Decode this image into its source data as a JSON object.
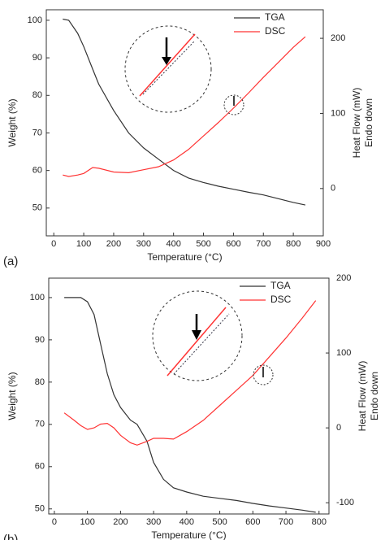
{
  "chart_data": [
    {
      "type": "line",
      "panel_label": "(a)",
      "xlabel": "Temperature (°C)",
      "ylabel": "Weight (%)",
      "y2label": [
        "Heat Flow (mW)",
        "Endo down"
      ],
      "x": [
        30,
        50,
        80,
        100,
        130,
        150,
        200,
        250,
        300,
        350,
        400,
        450,
        500,
        550,
        600,
        650,
        700,
        750,
        800,
        840
      ],
      "series": [
        {
          "name": "TGA",
          "color": "#333333",
          "values": [
            100.3,
            100,
            96.5,
            93,
            87,
            83,
            76,
            70,
            66,
            63,
            60,
            58,
            56.8,
            55.8,
            55,
            54.2,
            53.5,
            52.5,
            51.5,
            50.8
          ]
        },
        {
          "name": "DSC",
          "color": "#ff3333",
          "axis": "y2",
          "values": [
            18,
            16,
            18,
            20,
            28,
            27,
            22,
            21,
            25,
            29,
            38,
            52,
            70,
            88,
            107,
            127,
            148,
            168,
            188,
            202
          ]
        }
      ],
      "xlim": [
        -25,
        900
      ],
      "xticks": [
        0,
        100,
        200,
        300,
        400,
        500,
        600,
        700,
        800,
        900
      ],
      "ylim": [
        42.6,
        102.8
      ],
      "yticks": [
        50,
        60,
        70,
        80,
        90,
        100
      ],
      "y2lim": [
        -63,
        238
      ],
      "y2ticks": [
        0,
        100,
        200
      ],
      "legend": "top-right"
    },
    {
      "type": "line",
      "panel_label": "(b)",
      "xlabel": "Temperature (°C)",
      "ylabel": "Weight (%)",
      "y2label": [
        "Heat Flow (mW)",
        "Endo down"
      ],
      "x": [
        30,
        60,
        80,
        100,
        120,
        140,
        160,
        180,
        200,
        230,
        250,
        280,
        300,
        330,
        360,
        400,
        450,
        500,
        550,
        600,
        650,
        700,
        750,
        790
      ],
      "series": [
        {
          "name": "TGA",
          "color": "#333333",
          "values": [
            100,
            100,
            100,
            99,
            96,
            89,
            82,
            77,
            74,
            71,
            70,
            66,
            61,
            57,
            55,
            54,
            53,
            52.5,
            52,
            51.3,
            50.7,
            50.2,
            49.7,
            49.2
          ]
        },
        {
          "name": "DSC",
          "color": "#ff3333",
          "axis": "y2",
          "values": [
            20,
            10,
            3,
            -2,
            0,
            5,
            6,
            0,
            -10,
            -20,
            -23,
            -18,
            -14,
            -14,
            -15,
            -5,
            10,
            30,
            50,
            70,
            95,
            120,
            147,
            170
          ]
        }
      ],
      "xlim": [
        -17,
        830
      ],
      "xticks": [
        0,
        100,
        200,
        300,
        400,
        500,
        600,
        700,
        800
      ],
      "ylim": [
        48.8,
        104.6
      ],
      "yticks": [
        50,
        60,
        70,
        80,
        90,
        100
      ],
      "y2lim": [
        -115,
        200
      ],
      "y2ticks": [
        -100,
        0,
        100,
        200
      ],
      "legend": "top-right"
    }
  ]
}
